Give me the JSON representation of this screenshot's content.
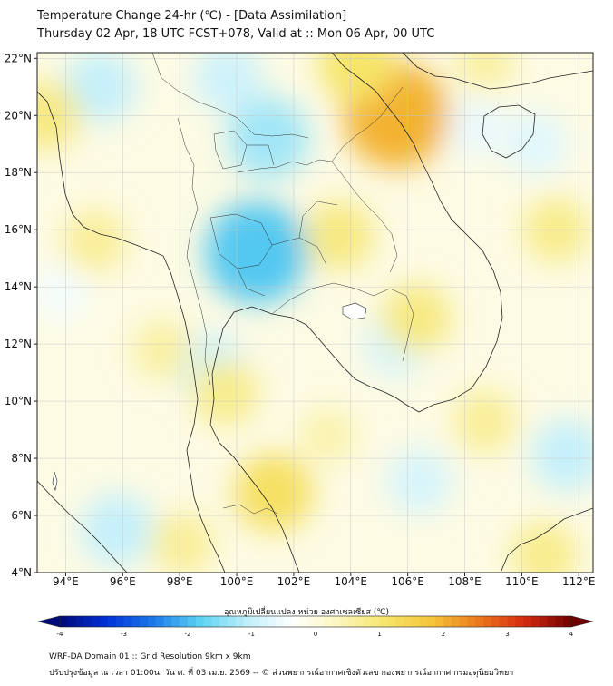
{
  "title": {
    "line1": "Temperature Change 24-hr (℃) - [Data Assimilation]",
    "line2": "Thursday 02 Apr, 18 UTC FCST+078, Valid at :: Mon 06 Apr, 00 UTC"
  },
  "map": {
    "lat_ticks": [
      "22°N",
      "20°N",
      "18°N",
      "16°N",
      "14°N",
      "12°N",
      "10°N",
      "8°N",
      "6°N",
      "4°N"
    ],
    "lon_ticks": [
      "94°E",
      "96°E",
      "98°E",
      "100°E",
      "102°E",
      "104°E",
      "106°E",
      "108°E",
      "110°E",
      "112°E"
    ],
    "lat_range": [
      4,
      22.2
    ],
    "lon_range": [
      93,
      112.5
    ]
  },
  "colorbar": {
    "label": "อุณหภูมิเปลี่ยนแปลง หน่วย องศาเซลเซียส (℃)",
    "ticks": [
      "-4",
      "-3",
      "-2",
      "-1",
      "0",
      "1",
      "2",
      "3",
      "4"
    ],
    "range": [
      -4,
      4
    ],
    "colors": [
      "#000a78",
      "#0030d8",
      "#1c78ea",
      "#5ad2f2",
      "#bdeefa",
      "#ffffff",
      "#fbf6bc",
      "#f6e56a",
      "#f5c43a",
      "#ec7a1c",
      "#d42a10",
      "#6e0000"
    ]
  },
  "footer": {
    "line1": "WRF-DA Domain 01 :: Grid Resolution 9km x 9km",
    "line2": "ปรับปรุงข้อมูล ณ เวลา 01:00น. วัน ศ. ที่ 03 เม.ย. 2569 -- © ส่วนพยากรณ์อากาศเชิงตัวเลข กองพยากรณ์อากาศ กรมอุตุนิยมวิทยา"
  },
  "field_anomalies": [
    {
      "lon": 100.7,
      "lat": 15.2,
      "value": -1.9
    },
    {
      "lon": 101.1,
      "lat": 19.2,
      "value": -1.3
    },
    {
      "lon": 95.2,
      "lat": 21.0,
      "value": -1.0
    },
    {
      "lon": 99.7,
      "lat": 21.3,
      "value": -0.9
    },
    {
      "lon": 99.1,
      "lat": 11.2,
      "value": -0.9
    },
    {
      "lon": 95.8,
      "lat": 5.5,
      "value": -1.0
    },
    {
      "lon": 111.6,
      "lat": 8.1,
      "value": -1.0
    },
    {
      "lon": 110.5,
      "lat": 19.0,
      "value": -0.7
    },
    {
      "lon": 105.6,
      "lat": 12.0,
      "value": -0.8
    },
    {
      "lon": 108.4,
      "lat": 19.6,
      "value": -0.6
    },
    {
      "lon": 106.4,
      "lat": 7.2,
      "value": -0.8
    },
    {
      "lon": 93.8,
      "lat": 13.8,
      "value": -0.5
    },
    {
      "lon": 105.6,
      "lat": 20.0,
      "value": 2.0
    },
    {
      "lon": 104.2,
      "lat": 21.8,
      "value": 1.1
    },
    {
      "lon": 101.3,
      "lat": 6.8,
      "value": 1.2
    },
    {
      "lon": 99.6,
      "lat": 10.3,
      "value": 0.8
    },
    {
      "lon": 103.6,
      "lat": 15.8,
      "value": 0.9
    },
    {
      "lon": 106.3,
      "lat": 12.9,
      "value": 0.9
    },
    {
      "lon": 111.2,
      "lat": 16.0,
      "value": 0.8
    },
    {
      "lon": 108.7,
      "lat": 9.3,
      "value": 0.7
    },
    {
      "lon": 95.0,
      "lat": 15.6,
      "value": 0.7
    },
    {
      "lon": 110.8,
      "lat": 4.6,
      "value": 0.8
    },
    {
      "lon": 93.3,
      "lat": 20.0,
      "value": 0.9
    },
    {
      "lon": 108.7,
      "lat": 21.9,
      "value": 0.6
    },
    {
      "lon": 98.1,
      "lat": 5.0,
      "value": 0.7
    },
    {
      "lon": 103.2,
      "lat": 8.8,
      "value": 0.5
    },
    {
      "lon": 97.4,
      "lat": 11.8,
      "value": 0.6
    }
  ]
}
